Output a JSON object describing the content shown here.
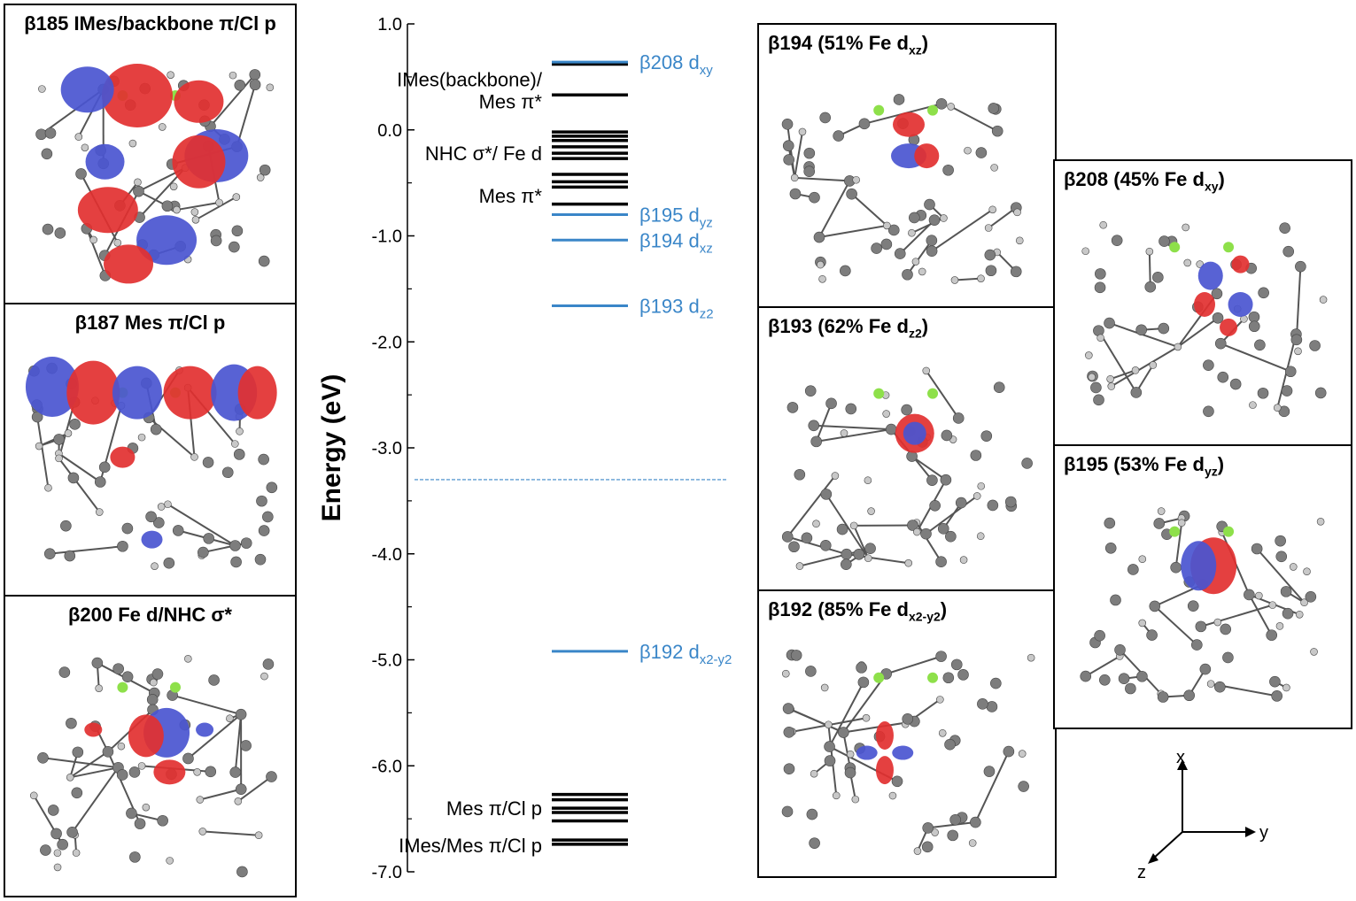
{
  "chart_data": {
    "type": "energy-level-diagram",
    "ylabel": "Energy (eV)",
    "ylim": [
      -7.0,
      1.0
    ],
    "yticks": [
      "1.0",
      "0.0",
      "-1.0",
      "-2.0",
      "-3.0",
      "-4.0",
      "-5.0",
      "-6.0",
      "-7.0"
    ],
    "ytick_values": [
      1.0,
      0.0,
      -1.0,
      -2.0,
      -3.0,
      -4.0,
      -5.0,
      -6.0,
      -7.0
    ],
    "homo_lumo_gap_line": -3.3,
    "black_levels": [
      0.62,
      0.33,
      -0.02,
      -0.06,
      -0.1,
      -0.16,
      -0.22,
      -0.27,
      -0.42,
      -0.49,
      -0.54,
      -0.7,
      -6.27,
      -6.32,
      -6.4,
      -6.44,
      -6.52,
      -6.7,
      -6.74
    ],
    "blue_levels": [
      {
        "energy": 0.64,
        "label": "β208 d",
        "sub": "xy"
      },
      {
        "energy": -0.8,
        "label": "β195 d",
        "sub": "yz"
      },
      {
        "energy": -1.04,
        "label": "β194 d",
        "sub": "xz"
      },
      {
        "energy": -1.66,
        "label": "β193 d",
        "sub": "z2"
      },
      {
        "energy": -4.92,
        "label": "β192 d",
        "sub": "x2-y2"
      }
    ],
    "black_labels": [
      {
        "text": "IMes(backbone)/",
        "energy": 0.48
      },
      {
        "text": "Mes π*",
        "energy": 0.27
      },
      {
        "text": "NHC σ*/ Fe d",
        "energy": -0.22
      },
      {
        "text": "Mes π*",
        "energy": -0.62
      },
      {
        "text": "Mes π/Cl p",
        "energy": -6.4
      },
      {
        "text": "IMes/Mes π/Cl p",
        "energy": -6.75
      }
    ],
    "colors": {
      "occupied": "#000000",
      "fe_d": "#3a86c8",
      "gap_line": "#3a86c8"
    }
  },
  "panels": {
    "b185": {
      "title": "β185 IMes/backbone π/Cl p"
    },
    "b187": {
      "title": "β187 Mes π/Cl p"
    },
    "b200": {
      "title": "β200 Fe d/NHC σ*"
    },
    "b194": {
      "title": "β194 (51% Fe d",
      "sub": "xz",
      "close": ")"
    },
    "b193": {
      "title": "β193 (62% Fe d",
      "sub": "z2",
      "close": ")"
    },
    "b192": {
      "title": "β192 (85% Fe d",
      "sub": "x2-y2",
      "close": ")"
    },
    "b208": {
      "title": "β208 (45% Fe d",
      "sub": "xy",
      "close": ")"
    },
    "b195": {
      "title": "β195 (53% Fe d",
      "sub": "yz",
      "close": ")"
    }
  },
  "axes_icon": {
    "x": "x",
    "y": "y",
    "z": "z"
  },
  "orbital_colors": {
    "positive": "#e23030",
    "negative": "#4a55d0",
    "atom": "#7d7d7d",
    "hydrogen": "#c8c8c8",
    "chlorine": "#8ee04a"
  }
}
